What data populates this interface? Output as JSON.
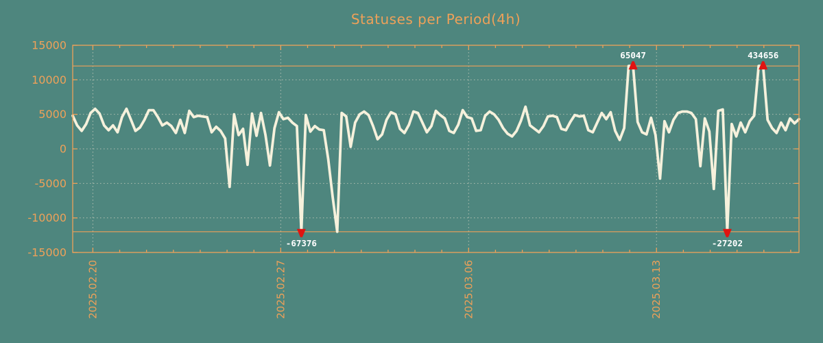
{
  "chart_data": {
    "type": "line",
    "title": "Statuses per Period(4h)",
    "period_per_point": "4h",
    "grid": true,
    "legend": "none",
    "ylim": [
      -15000,
      15000
    ],
    "y_tick_labels": [
      "15000",
      "10000",
      "5000",
      "0",
      "-5000",
      "-10000",
      "-15000"
    ],
    "y_tick_values": [
      15000,
      10000,
      5000,
      0,
      -5000,
      -10000,
      -15000
    ],
    "clip_line_values": [
      12000,
      -12000
    ],
    "x_tick_labels": [
      "2025.02.20",
      "2025.02.27",
      "2025.03.06",
      "2025.03.13"
    ],
    "x_major_interval_days": 7,
    "x_minor_interval_days": 1,
    "series": [
      {
        "name": "statuses",
        "values": [
          4800,
          3400,
          2600,
          3600,
          5200,
          5800,
          5100,
          3400,
          2700,
          3400,
          2400,
          4600,
          5800,
          4200,
          2600,
          3100,
          4200,
          5600,
          5600,
          4600,
          3400,
          3800,
          3300,
          2300,
          4200,
          2300,
          5500,
          4600,
          4800,
          4700,
          4600,
          2400,
          3200,
          2600,
          1500,
          -5500,
          5000,
          2000,
          2900,
          -2300,
          5100,
          1900,
          5200,
          2000,
          -2400,
          3000,
          5300,
          4300,
          4500,
          3800,
          3300,
          -67376,
          4900,
          2500,
          3300,
          2800,
          2700,
          -1500,
          -7000,
          -12000,
          5200,
          4700,
          300,
          3800,
          5000,
          5400,
          4900,
          3300,
          1400,
          2100,
          4200,
          5300,
          5000,
          2900,
          2300,
          3500,
          5400,
          5200,
          3800,
          2400,
          3300,
          5500,
          4900,
          4400,
          2600,
          2300,
          3500,
          5600,
          4600,
          4400,
          2600,
          2700,
          4800,
          5400,
          5000,
          4200,
          3000,
          2200,
          1800,
          2600,
          4100,
          6100,
          3400,
          2900,
          2400,
          3300,
          4700,
          4800,
          4600,
          2900,
          2700,
          3900,
          4900,
          4700,
          4800,
          2700,
          2400,
          3800,
          5200,
          4300,
          5300,
          2600,
          1300,
          3000,
          12000,
          65047,
          3900,
          2400,
          2100,
          4500,
          2000,
          -4300,
          4000,
          2400,
          4200,
          5200,
          5400,
          5400,
          5200,
          4300,
          -2500,
          4400,
          2500,
          -5800,
          5500,
          5700,
          -27202,
          3600,
          1800,
          3800,
          2400,
          4000,
          4800,
          12000,
          434656,
          4200,
          3000,
          2300,
          3800,
          2700,
          4400,
          3700,
          4300
        ]
      }
    ],
    "annotations": [
      {
        "index": 51,
        "value": -67376,
        "label": "-67376",
        "dir": "min"
      },
      {
        "index": 125,
        "value": 65047,
        "label": "65047",
        "dir": "max"
      },
      {
        "index": 146,
        "value": -27202,
        "label": "-27202",
        "dir": "min"
      },
      {
        "index": 154,
        "value": 434656,
        "label": "434656",
        "dir": "max"
      }
    ],
    "colors": {
      "background": "#4E867E",
      "axis_orange": "#EEA159",
      "series_line": "#F6F1DC",
      "grid_dash": "#C3C9BB",
      "marker_red": "#E01311",
      "annotation_text": "#FFFFFF"
    }
  }
}
